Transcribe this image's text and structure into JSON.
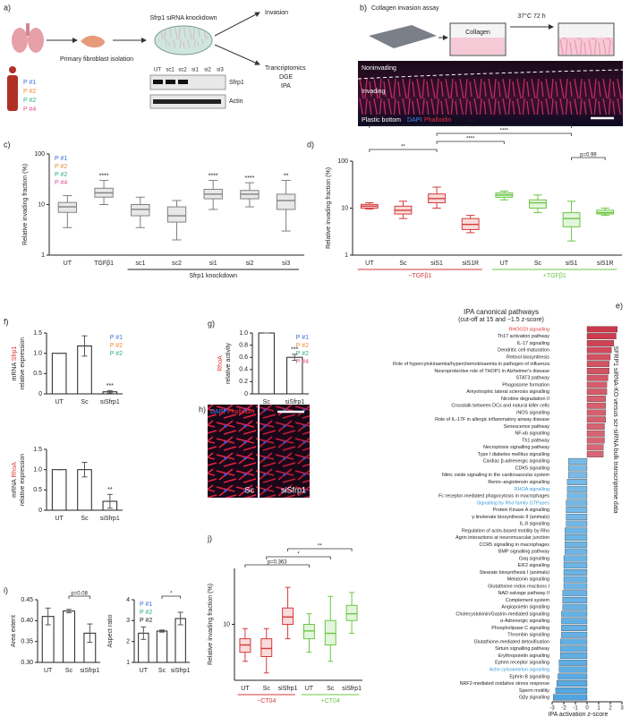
{
  "figure": {
    "a": {
      "label": "a)",
      "title": "Sfrp1 siRNA knockdown",
      "isolation": "Primary fibroblast isolation",
      "invasion": "Invasion",
      "transcriptomics": "Trancriptomics",
      "dge": "DGE",
      "ipa": "IPA",
      "lanes": [
        "UT",
        "sc1",
        "sc2",
        "si1",
        "si2",
        "si3"
      ],
      "bands": [
        "Sfrp1",
        "Actin"
      ],
      "patients": [
        {
          "text": "P #1",
          "color": "#3a6fd8"
        },
        {
          "text": "P #2",
          "color": "#f08a30"
        },
        {
          "text": "P #2",
          "color": "#2ab07a"
        },
        {
          "text": "P #4",
          "color": "#e0509a"
        }
      ]
    },
    "b": {
      "label": "b)",
      "title": "Collagen invasion assay",
      "condition": "37°C 72 h",
      "collagen": "Collagen",
      "noninvading": "Noninvading",
      "invading": "Invading",
      "bottom": "Plastic bottom",
      "dapi": "DAPI",
      "phalloidin": "Phalloidin"
    },
    "h": {
      "label": "h)",
      "dapi": "DAPI",
      "phalloidin": "Phalloidin",
      "left": "Sc",
      "right": "siSfrp1"
    }
  },
  "chart_data": [
    {
      "type": "box",
      "panel_label": "c)",
      "ylabel": [
        [
          {
            "text": "Relative invading fraction (%)"
          }
        ]
      ],
      "log": true,
      "ylim": [
        1,
        100
      ],
      "yticks": [
        1,
        10,
        100
      ],
      "categories": [
        "UT",
        "TGFβ1",
        "sc1",
        "sc2",
        "si1",
        "si2",
        "si3"
      ],
      "colors": [
        "#808080",
        "#808080",
        "#808080",
        "#808080",
        "#808080",
        "#808080",
        "#808080"
      ],
      "boxes": [
        {
          "low": 3.5,
          "q1": 7,
          "median": 9,
          "q3": 11,
          "high": 15
        },
        {
          "low": 10,
          "q1": 14,
          "median": 17,
          "q3": 21,
          "high": 30
        },
        {
          "low": 3.5,
          "q1": 6,
          "median": 8,
          "q3": 10,
          "high": 14
        },
        {
          "low": 2,
          "q1": 4.5,
          "median": 6,
          "q3": 9,
          "high": 12
        },
        {
          "low": 8,
          "q1": 13,
          "median": 16,
          "q3": 20,
          "high": 30
        },
        {
          "low": 9,
          "q1": 13,
          "median": 16,
          "q3": 19,
          "high": 27
        },
        {
          "low": 3,
          "q1": 8,
          "median": 12,
          "q3": 16,
          "high": 30
        }
      ],
      "annotations": [
        {
          "text": "****",
          "at": 1
        },
        {
          "text": "****",
          "at": 4
        },
        {
          "text": "****",
          "at": 5
        },
        {
          "text": "**",
          "at": 6
        }
      ],
      "groups": [
        {
          "label": "Sfrp1 knockdown",
          "from": 2,
          "to": 6,
          "color": "#222222"
        }
      ],
      "legend": [
        {
          "text": "P #1",
          "color": "#3a6fd8"
        },
        {
          "text": "P #2",
          "color": "#f08a30"
        },
        {
          "text": "P #2",
          "color": "#2ab07a"
        },
        {
          "text": "P #4",
          "color": "#e0509a"
        }
      ],
      "legend_corner": "top-left"
    },
    {
      "type": "box",
      "panel_label": "d)",
      "ylabel": [
        [
          {
            "text": "Relative invading fraction (%)"
          }
        ]
      ],
      "log": true,
      "ylim": [
        1,
        100
      ],
      "yticks": [
        1,
        10,
        100
      ],
      "categories": [
        "UT",
        "Sc",
        "siS1",
        "siS1R",
        "UT",
        "Sc",
        "siS1",
        "siS1R"
      ],
      "colors": [
        "#d63a3a",
        "#d63a3a",
        "#d63a3a",
        "#d63a3a",
        "#6cc644",
        "#6cc644",
        "#6cc644",
        "#6cc644"
      ],
      "boxes": [
        {
          "low": 9.5,
          "q1": 10,
          "median": 11,
          "q3": 12,
          "high": 13
        },
        {
          "low": 6,
          "q1": 7.5,
          "median": 9,
          "q3": 11,
          "high": 14
        },
        {
          "low": 10,
          "q1": 13,
          "median": 16,
          "q3": 20,
          "high": 28
        },
        {
          "low": 3,
          "q1": 3.5,
          "median": 4.5,
          "q3": 6,
          "high": 7
        },
        {
          "low": 15,
          "q1": 17,
          "median": 19,
          "q3": 21,
          "high": 23
        },
        {
          "low": 8,
          "q1": 10,
          "median": 13,
          "q3": 15,
          "high": 19
        },
        {
          "low": 2,
          "q1": 4,
          "median": 6,
          "q3": 8,
          "high": 14
        },
        {
          "low": 7,
          "q1": 7.5,
          "median": 8,
          "q3": 9,
          "high": 10
        }
      ],
      "brackets": [
        {
          "text": "p=0.99",
          "from": 6,
          "to": 7
        },
        {
          "text": "**",
          "from": 0,
          "to": 2
        },
        {
          "text": "****",
          "from": 2,
          "to": 4
        },
        {
          "text": "****",
          "from": 2,
          "to": 6
        },
        {
          "text": "****",
          "from": 0,
          "to": 6
        }
      ],
      "groups": [
        {
          "label": "−TGFβ1",
          "from": 0,
          "to": 3,
          "color": "#d63a3a"
        },
        {
          "label": "+TGFβ1",
          "from": 4,
          "to": 7,
          "color": "#6cc644"
        }
      ]
    },
    {
      "type": "bar",
      "panel_label": "f)",
      "ylabel": [
        [
          {
            "text": "mRNA "
          },
          {
            "text": "Sfrp1",
            "color": "#e03030"
          }
        ],
        [
          {
            "text": "relative expression"
          }
        ]
      ],
      "ylim": [
        0,
        1.5
      ],
      "yticks": [
        0,
        0.5,
        {
          "value": 1,
          "label": "1.0"
        },
        1.5
      ],
      "categories": [
        "UT",
        "Sc",
        "siSfrp1"
      ],
      "values": [
        1,
        1.18,
        0.05
      ],
      "errors": [
        0,
        0.25,
        0.03
      ],
      "color": "#ffffff",
      "annotations": [
        {
          "text": "***",
          "at": 2
        }
      ],
      "legend": [
        {
          "text": "P #1",
          "color": "#3a6fd8"
        },
        {
          "text": "P #2",
          "color": "#f08a30"
        },
        {
          "text": "P #2",
          "color": "#2ab07a"
        }
      ],
      "legend_corner": "top-right"
    },
    {
      "type": "bar",
      "ylabel": [
        [
          {
            "text": "mRNA "
          },
          {
            "text": "RhoA",
            "color": "#e03030"
          }
        ],
        [
          {
            "text": "relative expression"
          }
        ]
      ],
      "ylim": [
        0,
        1.5
      ],
      "yticks": [
        0,
        0.5,
        {
          "value": 1,
          "label": "1.0"
        },
        1.5
      ],
      "categories": [
        "UT",
        "Sc",
        "siSfrp1"
      ],
      "values": [
        1,
        1.0,
        0.22
      ],
      "errors": [
        0,
        0.18,
        0.17
      ],
      "color": "#ffffff",
      "annotations": [
        {
          "text": "**",
          "at": 2
        }
      ]
    },
    {
      "type": "bar",
      "panel_label": "g)",
      "ylabel": [
        [
          {
            "text": "RhoA",
            "color": "#e03030"
          }
        ],
        [
          {
            "text": "relative activity"
          }
        ]
      ],
      "ylim": [
        0,
        1
      ],
      "yticks": [
        0,
        0.2,
        0.4,
        0.6,
        0.8,
        {
          "value": 1,
          "label": "1.0"
        }
      ],
      "categories": [
        "Sc",
        "siSfrp1"
      ],
      "values": [
        1,
        0.6
      ],
      "errors": [
        0,
        0.05
      ],
      "color": "#ffffff",
      "annotations": [
        {
          "text": "***",
          "at": 1
        }
      ],
      "legend": [
        {
          "text": "P #1",
          "color": "#3a6fd8"
        },
        {
          "text": "P #2",
          "color": "#f08a30"
        },
        {
          "text": "P #2",
          "color": "#2ab07a"
        },
        {
          "text": "P #4",
          "color": "#e0509a"
        }
      ],
      "legend_corner": "top-right"
    },
    {
      "type": "bar",
      "panel_label": "i)",
      "ylabel": [
        [
          {
            "text": "Area extent"
          }
        ]
      ],
      "ylim": [
        0.3,
        0.45
      ],
      "yticks": [
        {
          "value": 0.3,
          "label": "0.30"
        },
        0.35,
        {
          "value": 0.4,
          "label": "0.40"
        },
        0.45
      ],
      "categories": [
        "UT",
        "Sc",
        "siSfrp1"
      ],
      "values": [
        0.41,
        0.423,
        0.37
      ],
      "errors": [
        0.02,
        0.004,
        0.022
      ],
      "color": "#ffffff",
      "brackets": [
        {
          "text": "p=0.08",
          "from": 1,
          "to": 2
        }
      ]
    },
    {
      "type": "bar",
      "ylabel": [
        [
          {
            "text": "Aspect ratio"
          }
        ]
      ],
      "ylim": [
        1,
        4
      ],
      "yticks": [
        1,
        2,
        3,
        4
      ],
      "categories": [
        "UT",
        "Sc",
        "siSfrp1"
      ],
      "values": [
        2.4,
        2.5,
        3.1
      ],
      "errors": [
        0.3,
        0.05,
        0.3
      ],
      "color": "#ffffff",
      "brackets": [
        {
          "text": "*",
          "from": 1,
          "to": 2
        }
      ],
      "legend": [
        {
          "text": "P #1",
          "color": "#3a6fd8"
        },
        {
          "text": "P #2",
          "color": "#2ab07a"
        },
        {
          "text": "P #2",
          "color": "#222222"
        }
      ],
      "legend_corner": "top-left"
    },
    {
      "type": "box",
      "panel_label": "j)",
      "ylabel": [
        [
          {
            "text": "Relative invading fraction (%)"
          }
        ]
      ],
      "log": true,
      "ylim": [
        2.5,
        40
      ],
      "yticks": [
        10
      ],
      "categories": [
        "UT",
        "Sc",
        "siSfrp1",
        "UT",
        "Sc",
        "siSfrp1"
      ],
      "colors": [
        "#d63a3a",
        "#d63a3a",
        "#d63a3a",
        "#6cc644",
        "#6cc644",
        "#6cc644"
      ],
      "boxes": [
        {
          "low": 4,
          "q1": 5,
          "median": 6,
          "q3": 7,
          "high": 9
        },
        {
          "low": 3,
          "q1": 4.5,
          "median": 5.5,
          "q3": 7,
          "high": 9
        },
        {
          "low": 7,
          "q1": 10,
          "median": 12,
          "q3": 15,
          "high": 25
        },
        {
          "low": 5,
          "q1": 7,
          "median": 8.5,
          "q3": 10,
          "high": 13
        },
        {
          "low": 4,
          "q1": 6,
          "median": 8,
          "q3": 11,
          "high": 20
        },
        {
          "low": 8,
          "q1": 11,
          "median": 13,
          "q3": 16,
          "high": 22
        }
      ],
      "brackets": [
        {
          "text": "p=0.363",
          "from": 0,
          "to": 3
        },
        {
          "text": "*",
          "from": 1,
          "to": 4
        },
        {
          "text": "**",
          "from": 2,
          "to": 5
        }
      ],
      "groups": [
        {
          "label": "−CT04",
          "from": 0,
          "to": 2,
          "color": "#d63a3a"
        },
        {
          "label": "+CT04",
          "from": 3,
          "to": 5,
          "color": "#6cc644"
        }
      ]
    },
    {
      "type": "hbar",
      "panel_label": "e)",
      "title": "IPA canonical pathways",
      "subtitle": "(cut-off at 15 and −1.5 z-score)",
      "side_label": "SFRP1 siRNA-KO versus scr-siRNA bulk transcriptome data",
      "xlabel": "IPA activation z-score",
      "xlim": [
        -3,
        3
      ],
      "xticks": [
        -3,
        -2,
        -1,
        0,
        1,
        2,
        3
      ],
      "pos_color": "#c8283c",
      "neg_color": "#4aa3df",
      "categories": [
        "RHOGDI signalling",
        "Th17 activation pathway",
        "IL-17 signalling",
        "Dendritic cell maturation",
        "Retinol biosynthesis",
        "Role of hypercytokinaemia/hyperchemokinaemia in pathogen of influenza",
        "Neuroprotective role of THOP1 in Alzheimer's disease",
        "STAT3 pathway",
        "Phagosome formation",
        "Amyotrophic lateral sclerosis signalling",
        "Nicotine degradation II",
        "Crosstalk between DCs and natural killer cells",
        "iNOS signalling",
        "Role of IL-17F in allergic inflammatory airway disease",
        "Senescence pathway",
        "NF-κb signalling",
        "Th1 pathway",
        "Necroptosis signalling pathway",
        "Type I diabetes mellitus signalling",
        "Cardiac β-adrenergic signalling",
        "CDK5 signalling",
        "Nitric oxide signalling in the cardiovascular system",
        "Renin–angiotensin signalling",
        "RHOA signalling",
        "Fc receptor-mediated phagocytosis in macrophages",
        "Signalling by Rho family GTPases",
        "Protein Kinase A signalling",
        "γ-linolenate biosynthesis II (animals)",
        "IL-8 signalling",
        "Regulation of actin-based motility by Rho",
        "Agrin interactions at neuromuscular junction",
        "CCR5 signalling in macrophages",
        "BMP signalling pathway",
        "Gαq signalling",
        "EIF2 signalling",
        "Stearate biosynthesis I (animals)",
        "Melatonin signalling",
        "Glutathione redox reactions I",
        "NAD salvage pathway II",
        "Complement system",
        "Angiopoietin signalling",
        "Cholecystokinin/Gastrin-mediated signalling",
        "α-Adrenergic signalling",
        "Phospholipase C signalling",
        "Thrombin signalling",
        "Glutathione-mediated detoxification",
        "Sirtuin signalling pathway",
        "Erythropoietin signalling",
        "Ephrin receptor signalling",
        "Actin cytoskeleton signalling",
        "Ephrin B signalling",
        "NRF2-mediated oxidative stress response",
        "Sperm motility",
        "Gβγ signalling"
      ],
      "values": [
        2.6,
        2.5,
        2.3,
        2.1,
        2.0,
        1.9,
        1.9,
        1.8,
        1.7,
        1.7,
        1.6,
        1.6,
        1.6,
        1.6,
        1.5,
        1.5,
        1.5,
        1.4,
        1.4,
        -1.6,
        -1.6,
        -1.6,
        -1.7,
        -1.7,
        -1.7,
        -1.8,
        -1.8,
        -1.8,
        -1.8,
        -1.9,
        -1.9,
        -1.9,
        -1.9,
        -2.0,
        -2.0,
        -2.0,
        -2.0,
        -2.0,
        -2.1,
        -2.1,
        -2.1,
        -2.2,
        -2.2,
        -2.2,
        -2.2,
        -2.3,
        -2.3,
        -2.3,
        -2.4,
        -2.4,
        -2.5,
        -2.6,
        -2.7,
        -2.9
      ],
      "label_highlights": [
        {
          "at": 0,
          "color": "#e03a3a"
        },
        {
          "at": 23,
          "color": "#3a9ad9"
        },
        {
          "at": 25,
          "color": "#3a9ad9"
        },
        {
          "at": 49,
          "color": "#3a9ad9"
        }
      ]
    }
  ]
}
